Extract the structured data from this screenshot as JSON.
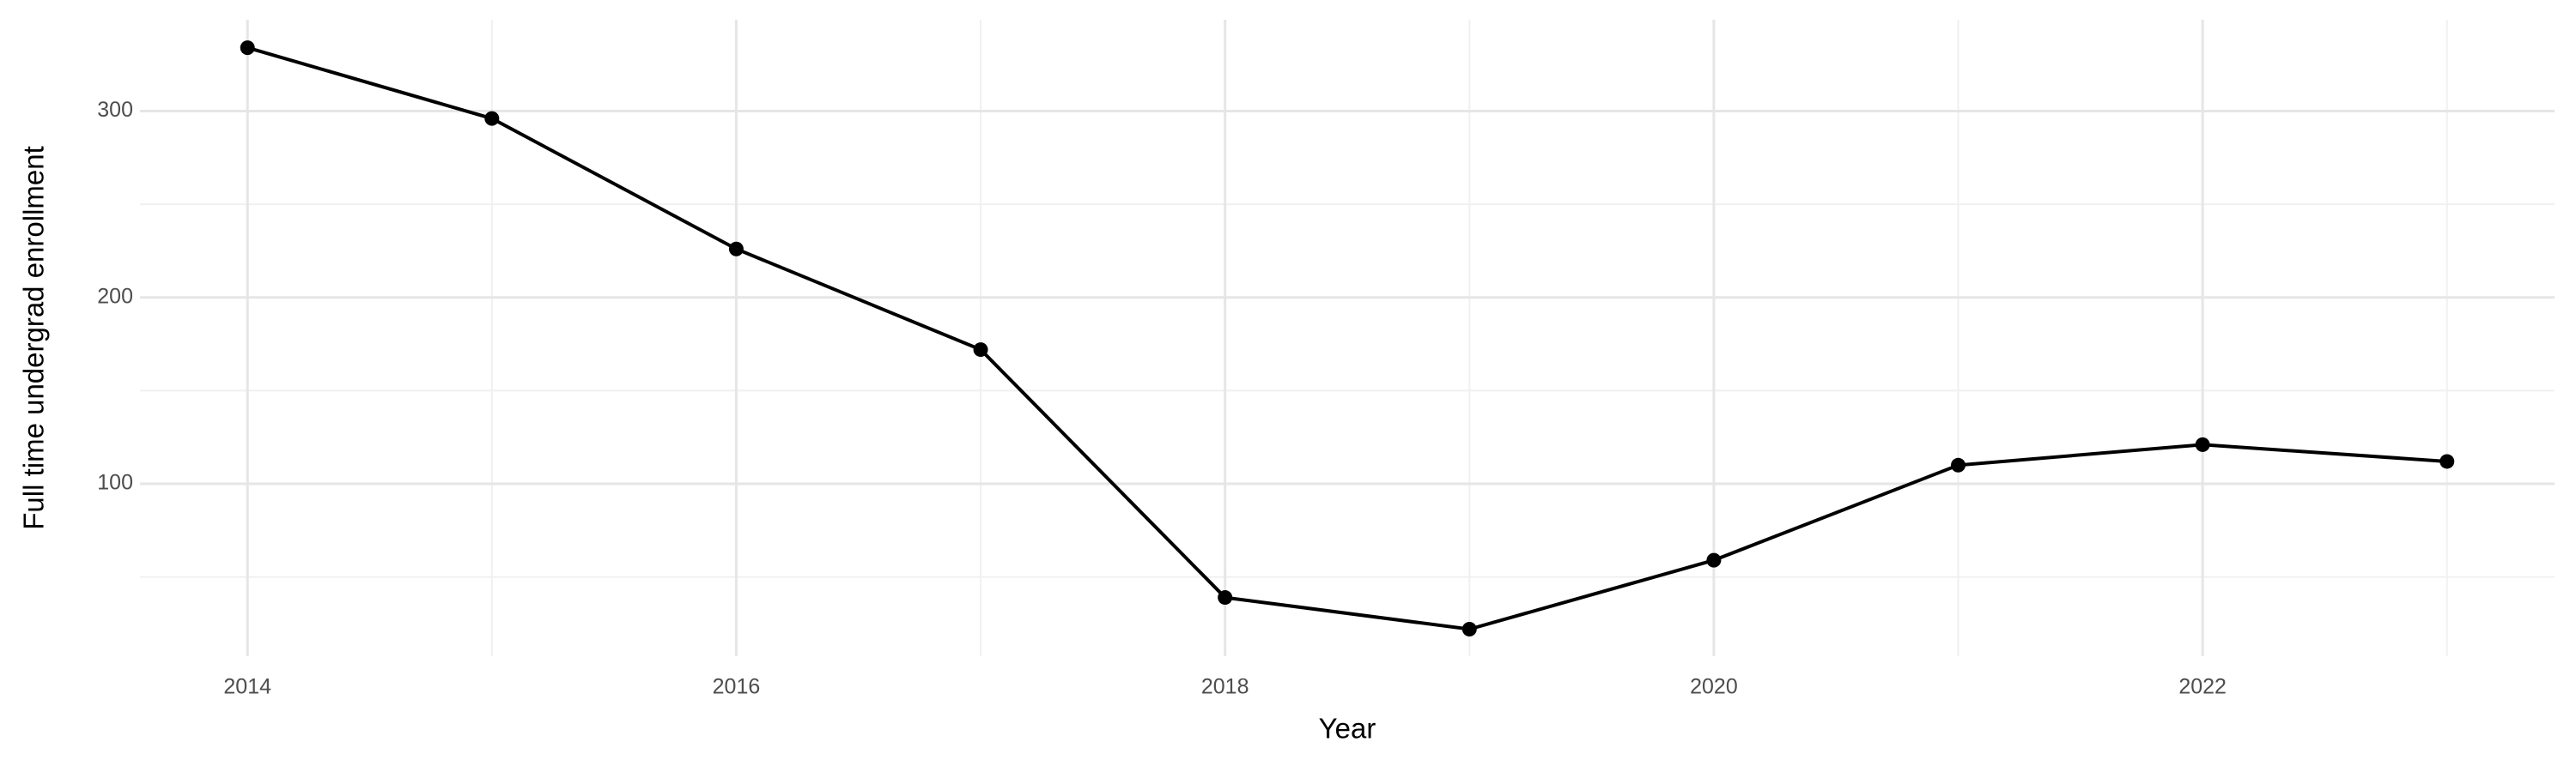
{
  "chart_data": {
    "type": "line",
    "x_label": "Year",
    "y_label": "Full time undergrad enrollment",
    "x": [
      2014,
      2015,
      2016,
      2017,
      2018,
      2019,
      2020,
      2021,
      2022,
      2023
    ],
    "series": [
      {
        "name": "Full time undergrad enrollment",
        "color": "#000000",
        "values": [
          334,
          296,
          226,
          172,
          39,
          22,
          59,
          110,
          121,
          112
        ]
      }
    ],
    "xlim": [
      2013.56,
      2023.44
    ],
    "xticks": [
      2014,
      2016,
      2018,
      2020,
      2022
    ],
    "x_minor_ticks": [
      2015,
      2017,
      2019,
      2021,
      2023
    ],
    "ylim": [
      7.5,
      349
    ],
    "yticks": [
      100,
      200,
      300
    ],
    "y_minor_ticks": [
      50,
      150,
      250
    ],
    "grid": true
  }
}
